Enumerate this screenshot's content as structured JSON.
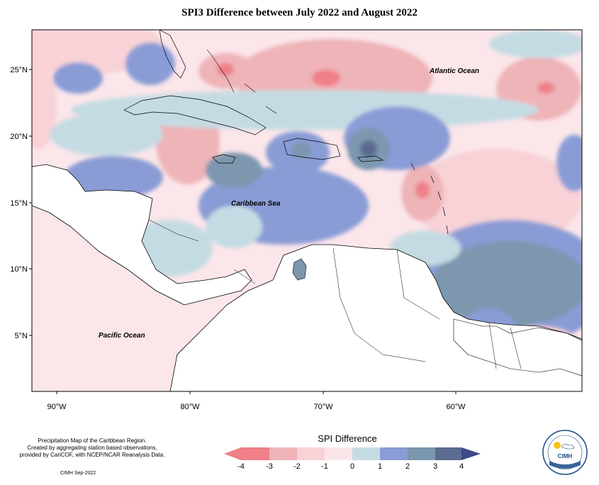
{
  "title": "SPI3 Difference between July 2022 and August 2022",
  "map": {
    "lat_ticks": [
      "25°N",
      "20°N",
      "15°N",
      "10°N",
      "5°N"
    ],
    "lon_ticks": [
      "90°W",
      "80°W",
      "70°W",
      "60°W"
    ],
    "labels": {
      "atlantic": "Atlantic Ocean",
      "caribbean": "Caribbean Sea",
      "pacific": "Pacific Ocean"
    }
  },
  "credit": {
    "line1": "Precipitation Map of the Caribbean Region.",
    "line2": "Created by aggregating station based observations,",
    "line3": "provided by CariCOF, with NCEP/NCAR Reanalysis Data.",
    "date": "CIMH Sep-2022"
  },
  "legend": {
    "title": "SPI Difference",
    "ticks": [
      "-4",
      "-3",
      "-2",
      "-1",
      "0",
      "1",
      "2",
      "3",
      "4"
    ],
    "colors": [
      "#f07f88",
      "#eeb4b8",
      "#f8d2d6",
      "#fbe6ea",
      "#c5dbe3",
      "#8a9cd6",
      "#7b97ae",
      "#5b6a8f",
      "#3d4a87"
    ]
  },
  "logo": {
    "text": "CIMH"
  },
  "colors": {
    "strong_dry": "#f07f88",
    "dry": "#eeb4b8",
    "slight_dry": "#f8d2d6",
    "near_zero": "#fbe6ea",
    "slight_wet": "#c5dbe3",
    "wet": "#8a9cd6",
    "wetter": "#7b97ae",
    "very_wet": "#5b6a8f"
  }
}
